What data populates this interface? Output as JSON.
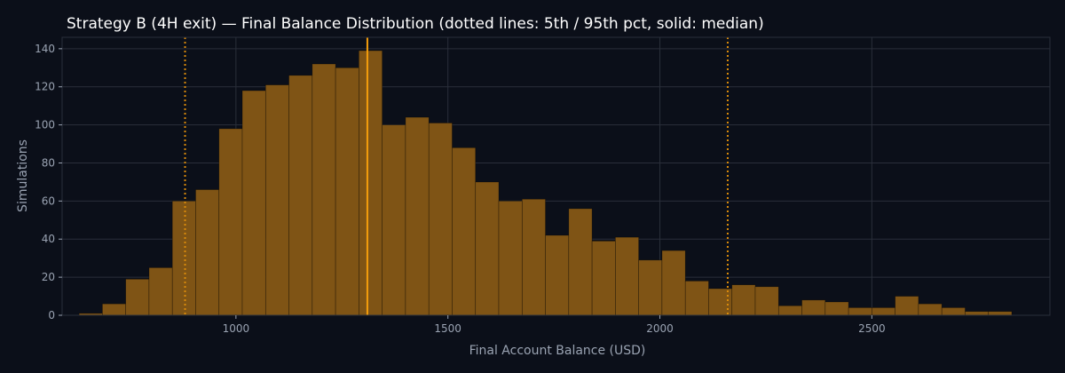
{
  "chart_data": {
    "type": "bar",
    "title": "Strategy B (4H exit) — Final Balance Distribution (dotted lines: 5th / 95th pct, solid: median)",
    "xlabel": "Final Account Balance (USD)",
    "ylabel": "Simulations",
    "xlim": [
      590,
      2920
    ],
    "ylim": [
      0,
      146
    ],
    "xticks": [
      1000,
      1500,
      2000,
      2500
    ],
    "yticks": [
      0,
      20,
      40,
      60,
      80,
      100,
      120,
      140
    ],
    "grid": true,
    "bin_edges": [
      630,
      685,
      740,
      795,
      850,
      905,
      960,
      1015,
      1070,
      1125,
      1180,
      1235,
      1290,
      1345,
      1400,
      1455,
      1510,
      1565,
      1620,
      1675,
      1730,
      1785,
      1840,
      1895,
      1950,
      2005,
      2060,
      2115,
      2170,
      2225,
      2280,
      2335,
      2390,
      2445,
      2500,
      2555,
      2610,
      2665,
      2720,
      2775,
      2830
    ],
    "counts": [
      1,
      6,
      19,
      25,
      60,
      66,
      98,
      118,
      121,
      126,
      132,
      130,
      139,
      100,
      104,
      101,
      88,
      70,
      60,
      61,
      42,
      56,
      39,
      41,
      29,
      34,
      18,
      14,
      16,
      15,
      5,
      8,
      7,
      4,
      4,
      10,
      6,
      4,
      2,
      2
    ],
    "percentile_5": 880,
    "percentile_95": 2160,
    "median": 1310,
    "colors": {
      "background": "#0b0f19",
      "bar": "#7f5415",
      "bar_edge": "#000000",
      "median_line": "#f59e0b",
      "percentile_line": "#d98a0b",
      "grid": "#2a2f3a",
      "text": "#9aa3b2",
      "title": "#ffffff"
    }
  }
}
